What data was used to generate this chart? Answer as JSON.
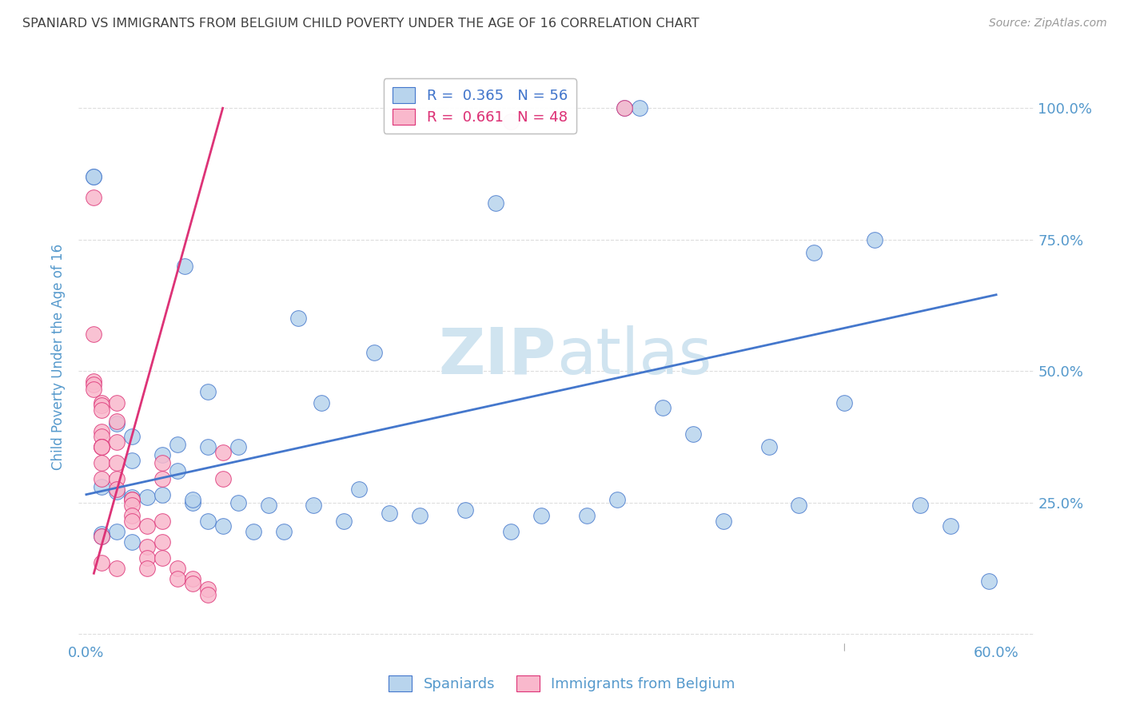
{
  "title": "SPANIARD VS IMMIGRANTS FROM BELGIUM CHILD POVERTY UNDER THE AGE OF 16 CORRELATION CHART",
  "source": "Source: ZipAtlas.com",
  "ylabel": "Child Poverty Under the Age of 16",
  "xlabel_spaniards": "Spaniards",
  "xlabel_immigrants": "Immigrants from Belgium",
  "blue_R": "0.365",
  "blue_N": "56",
  "pink_R": "0.661",
  "pink_N": "48",
  "blue_color": "#b8d4ed",
  "pink_color": "#f9b8cc",
  "blue_line_color": "#4477cc",
  "pink_line_color": "#dd3377",
  "title_color": "#404040",
  "axis_color": "#5599cc",
  "grid_color": "#dddddd",
  "watermark_color": "#d0e4f0",
  "blue_scatter_x": [
    0.355,
    0.365,
    0.005,
    0.005,
    0.065,
    0.14,
    0.19,
    0.08,
    0.155,
    0.02,
    0.03,
    0.06,
    0.08,
    0.1,
    0.05,
    0.03,
    0.06,
    0.01,
    0.02,
    0.03,
    0.04,
    0.07,
    0.1,
    0.12,
    0.15,
    0.2,
    0.25,
    0.3,
    0.33,
    0.38,
    0.4,
    0.45,
    0.5,
    0.55,
    0.595,
    0.52,
    0.47,
    0.42,
    0.02,
    0.01,
    0.01,
    0.03,
    0.05,
    0.07,
    0.08,
    0.09,
    0.11,
    0.13,
    0.17,
    0.22,
    0.28,
    0.35,
    0.57,
    0.48,
    0.27,
    0.18
  ],
  "blue_scatter_y": [
    1.0,
    1.0,
    0.87,
    0.87,
    0.7,
    0.6,
    0.535,
    0.46,
    0.44,
    0.4,
    0.375,
    0.36,
    0.355,
    0.355,
    0.34,
    0.33,
    0.31,
    0.28,
    0.27,
    0.26,
    0.26,
    0.25,
    0.25,
    0.245,
    0.245,
    0.23,
    0.235,
    0.225,
    0.225,
    0.43,
    0.38,
    0.355,
    0.44,
    0.245,
    0.1,
    0.75,
    0.245,
    0.215,
    0.195,
    0.19,
    0.185,
    0.175,
    0.265,
    0.255,
    0.215,
    0.205,
    0.195,
    0.195,
    0.215,
    0.225,
    0.195,
    0.255,
    0.205,
    0.725,
    0.82,
    0.275
  ],
  "pink_scatter_x": [
    0.005,
    0.005,
    0.005,
    0.005,
    0.005,
    0.01,
    0.01,
    0.01,
    0.01,
    0.01,
    0.01,
    0.01,
    0.01,
    0.01,
    0.01,
    0.01,
    0.01,
    0.02,
    0.02,
    0.02,
    0.02,
    0.02,
    0.02,
    0.02,
    0.03,
    0.03,
    0.03,
    0.03,
    0.03,
    0.04,
    0.04,
    0.04,
    0.04,
    0.05,
    0.05,
    0.05,
    0.05,
    0.05,
    0.06,
    0.06,
    0.07,
    0.07,
    0.08,
    0.08,
    0.09,
    0.09,
    0.355,
    0.28
  ],
  "pink_scatter_y": [
    0.83,
    0.57,
    0.48,
    0.475,
    0.465,
    0.44,
    0.435,
    0.425,
    0.385,
    0.375,
    0.355,
    0.355,
    0.355,
    0.325,
    0.295,
    0.185,
    0.135,
    0.125,
    0.44,
    0.405,
    0.365,
    0.325,
    0.295,
    0.275,
    0.255,
    0.255,
    0.245,
    0.225,
    0.215,
    0.205,
    0.165,
    0.145,
    0.125,
    0.325,
    0.295,
    0.215,
    0.175,
    0.145,
    0.125,
    0.105,
    0.105,
    0.095,
    0.085,
    0.075,
    0.345,
    0.295,
    1.0,
    0.975
  ],
  "blue_line_x": [
    0.0,
    0.6
  ],
  "blue_line_y": [
    0.265,
    0.645
  ],
  "pink_line_x": [
    0.005,
    0.09
  ],
  "pink_line_y": [
    0.115,
    1.0
  ],
  "xlim": [
    -0.005,
    0.625
  ],
  "ylim": [
    -0.015,
    1.07
  ],
  "x_ticks": [
    0.0,
    0.1,
    0.2,
    0.3,
    0.4,
    0.5,
    0.6
  ],
  "x_labels": [
    "0.0%",
    "",
    "",
    "",
    "",
    "",
    "60.0%"
  ],
  "y_ticks": [
    0.0,
    0.25,
    0.5,
    0.75,
    1.0
  ],
  "y_labels": [
    "",
    "25.0%",
    "50.0%",
    "75.0%",
    "100.0%"
  ]
}
